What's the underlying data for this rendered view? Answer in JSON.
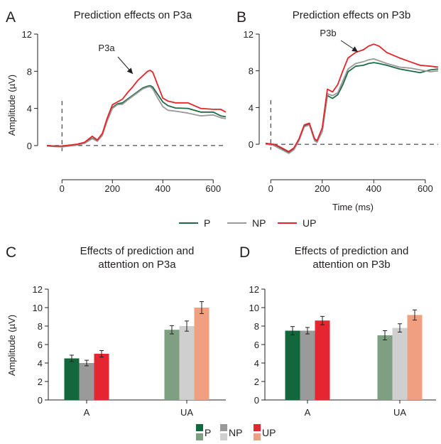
{
  "colors": {
    "P": "#1b6b45",
    "NP": "#999999",
    "UP": "#e2242b",
    "P_unattended": "#7e9f82",
    "NP_unattended": "#cfcfcf",
    "UP_unattended": "#f0a080",
    "P_attended_bar": "#12683c",
    "NP_attended_bar": "#9a9a9a",
    "UP_attended_bar": "#e52530"
  },
  "figure": {
    "legend_top": [
      {
        "label": "P",
        "color_key": "P"
      },
      {
        "label": "NP",
        "color_key": "NP"
      },
      {
        "label": "UP",
        "color_key": "UP"
      }
    ],
    "legend_bottom": [
      {
        "label": "P",
        "top_color": "P_attended_bar",
        "bottom_color": "P_unattended"
      },
      {
        "label": "NP",
        "top_color": "NP_attended_bar",
        "bottom_color": "NP_unattended"
      },
      {
        "label": "UP",
        "top_color": "UP_attended_bar",
        "bottom_color": "UP_unattended"
      }
    ]
  },
  "chart_data": [
    {
      "panel": "A",
      "type": "line",
      "title": "Prediction effects on P3a",
      "xlabel": "",
      "ylabel": "Amplitude (µV)",
      "xlim": [
        -60,
        650
      ],
      "ylim": [
        -1,
        12
      ],
      "xticks": [
        0,
        200,
        400,
        600
      ],
      "yticks": [
        0,
        4,
        8,
        12
      ],
      "annotation": {
        "text": "P3a",
        "target": [
          300,
          7.9
        ]
      },
      "series": [
        {
          "name": "P",
          "color_key": "P",
          "x": [
            -60,
            -30,
            0,
            30,
            60,
            90,
            120,
            140,
            160,
            180,
            200,
            220,
            240,
            260,
            280,
            300,
            320,
            340,
            350,
            360,
            380,
            400,
            420,
            450,
            500,
            550,
            600,
            630,
            650
          ],
          "y": [
            0,
            -0.05,
            -0.1,
            0,
            0.1,
            0.3,
            0.8,
            0.5,
            1.2,
            2.8,
            4.1,
            4.5,
            4.6,
            5,
            5.4,
            5.8,
            6.2,
            6.4,
            6.45,
            6.3,
            5.5,
            4.7,
            4.3,
            4.05,
            4,
            3.6,
            3.6,
            3.2,
            3.1
          ]
        },
        {
          "name": "NP",
          "color_key": "NP",
          "x": [
            -60,
            -30,
            0,
            30,
            60,
            90,
            120,
            140,
            160,
            180,
            200,
            220,
            240,
            260,
            280,
            300,
            320,
            340,
            350,
            360,
            380,
            400,
            420,
            450,
            500,
            550,
            600,
            630,
            650
          ],
          "y": [
            -0.05,
            -0.1,
            -0.15,
            -0.05,
            0.05,
            0.25,
            0.75,
            0.45,
            1.1,
            2.7,
            4,
            4.4,
            4.45,
            4.9,
            5.3,
            5.7,
            6.1,
            6.3,
            6.35,
            6.1,
            5.1,
            4.2,
            3.8,
            3.7,
            3.5,
            3.2,
            3.3,
            3.0,
            2.9
          ]
        },
        {
          "name": "UP",
          "color_key": "UP",
          "x": [
            -60,
            -30,
            0,
            30,
            60,
            90,
            120,
            140,
            160,
            180,
            200,
            220,
            240,
            260,
            280,
            300,
            320,
            340,
            350,
            360,
            380,
            400,
            420,
            450,
            500,
            550,
            600,
            630,
            650
          ],
          "y": [
            0,
            -0.05,
            -0.05,
            0.05,
            0.15,
            0.35,
            1.0,
            0.6,
            1.3,
            3.0,
            4.4,
            4.7,
            5.0,
            5.7,
            6.3,
            7.0,
            7.5,
            8.0,
            8.1,
            7.9,
            6.5,
            5.1,
            4.8,
            4.6,
            4.6,
            4.0,
            3.9,
            3.9,
            3.6
          ]
        }
      ]
    },
    {
      "panel": "B",
      "type": "line",
      "title": "Prediction effects on P3b",
      "xlabel": "Time (ms)",
      "ylabel": "",
      "xlim": [
        -20,
        650
      ],
      "ylim": [
        -1,
        12
      ],
      "xticks": [
        0,
        200,
        400,
        600
      ],
      "yticks": [
        0,
        4,
        8,
        12
      ],
      "annotation": {
        "text": "P3b",
        "target": [
          325,
          10.0
        ]
      },
      "series": [
        {
          "name": "P",
          "color_key": "P",
          "x": [
            -20,
            10,
            30,
            50,
            70,
            90,
            110,
            130,
            150,
            170,
            180,
            200,
            220,
            240,
            260,
            280,
            300,
            330,
            360,
            380,
            400,
            420,
            450,
            500,
            540,
            580,
            620,
            650
          ],
          "y": [
            0.1,
            0,
            -0.3,
            -0.6,
            -0.9,
            -0.5,
            0.5,
            2.0,
            2.2,
            0.5,
            0.3,
            1.4,
            5.3,
            5.0,
            5.4,
            6.5,
            7.9,
            8.5,
            8.6,
            8.8,
            8.9,
            8.8,
            8.6,
            8.2,
            8.0,
            7.8,
            8.1,
            8.2
          ]
        },
        {
          "name": "NP",
          "color_key": "NP",
          "x": [
            -20,
            10,
            30,
            50,
            70,
            90,
            110,
            130,
            150,
            170,
            180,
            200,
            220,
            240,
            260,
            280,
            300,
            330,
            360,
            380,
            400,
            420,
            450,
            500,
            540,
            580,
            620,
            650
          ],
          "y": [
            0,
            -0.1,
            -0.4,
            -0.7,
            -1.0,
            -0.6,
            0.4,
            1.9,
            2.1,
            0.4,
            0.2,
            1.4,
            5.5,
            5.3,
            5.6,
            6.9,
            8.2,
            8.8,
            9.0,
            9.2,
            9.3,
            9.1,
            8.8,
            8.4,
            8.3,
            8.1,
            7.9,
            8.0
          ]
        },
        {
          "name": "UP",
          "color_key": "UP",
          "x": [
            -20,
            10,
            30,
            50,
            70,
            90,
            110,
            130,
            150,
            170,
            180,
            200,
            220,
            240,
            260,
            280,
            300,
            330,
            360,
            380,
            400,
            420,
            450,
            500,
            540,
            580,
            620,
            650
          ],
          "y": [
            0.1,
            0,
            -0.2,
            -0.5,
            -0.8,
            -0.4,
            0.6,
            2.1,
            2.3,
            0.6,
            0.4,
            1.8,
            6.0,
            5.7,
            6.5,
            8.0,
            9.4,
            10.0,
            10.3,
            10.7,
            10.9,
            10.7,
            10.0,
            9.4,
            9.0,
            8.6,
            8.5,
            8.4
          ]
        }
      ]
    },
    {
      "panel": "C",
      "type": "bar",
      "title": [
        "Effects of prediction and",
        "attention on P3a"
      ],
      "xlabel": "",
      "ylabel": "Amplitude (µV)",
      "categories": [
        "A",
        "UA"
      ],
      "ylim": [
        0,
        12
      ],
      "yticks": [
        0,
        2,
        4,
        6,
        8,
        10,
        12
      ],
      "series": [
        {
          "name": "P",
          "values": [
            4.5,
            7.6
          ],
          "errors": [
            0.35,
            0.45
          ],
          "color_keys": [
            "P_attended_bar",
            "P_unattended"
          ]
        },
        {
          "name": "NP",
          "values": [
            4.0,
            8.0
          ],
          "errors": [
            0.3,
            0.55
          ],
          "color_keys": [
            "NP_attended_bar",
            "NP_unattended"
          ]
        },
        {
          "name": "UP",
          "values": [
            5.0,
            10.0
          ],
          "errors": [
            0.35,
            0.65
          ],
          "color_keys": [
            "UP_attended_bar",
            "UP_unattended"
          ]
        }
      ]
    },
    {
      "panel": "D",
      "type": "bar",
      "title": [
        "Effects of prediction and",
        "attention on P3b"
      ],
      "xlabel": "",
      "ylabel": "",
      "categories": [
        "A",
        "UA"
      ],
      "ylim": [
        0,
        12
      ],
      "yticks": [
        0,
        2,
        4,
        6,
        8,
        10,
        12
      ],
      "series": [
        {
          "name": "P",
          "values": [
            7.5,
            7.0
          ],
          "errors": [
            0.45,
            0.5
          ],
          "color_keys": [
            "P_attended_bar",
            "P_unattended"
          ]
        },
        {
          "name": "NP",
          "values": [
            7.5,
            7.8
          ],
          "errors": [
            0.35,
            0.45
          ],
          "color_keys": [
            "NP_attended_bar",
            "NP_unattended"
          ]
        },
        {
          "name": "UP",
          "values": [
            8.6,
            9.2
          ],
          "errors": [
            0.45,
            0.55
          ],
          "color_keys": [
            "UP_attended_bar",
            "UP_unattended"
          ]
        }
      ]
    }
  ]
}
